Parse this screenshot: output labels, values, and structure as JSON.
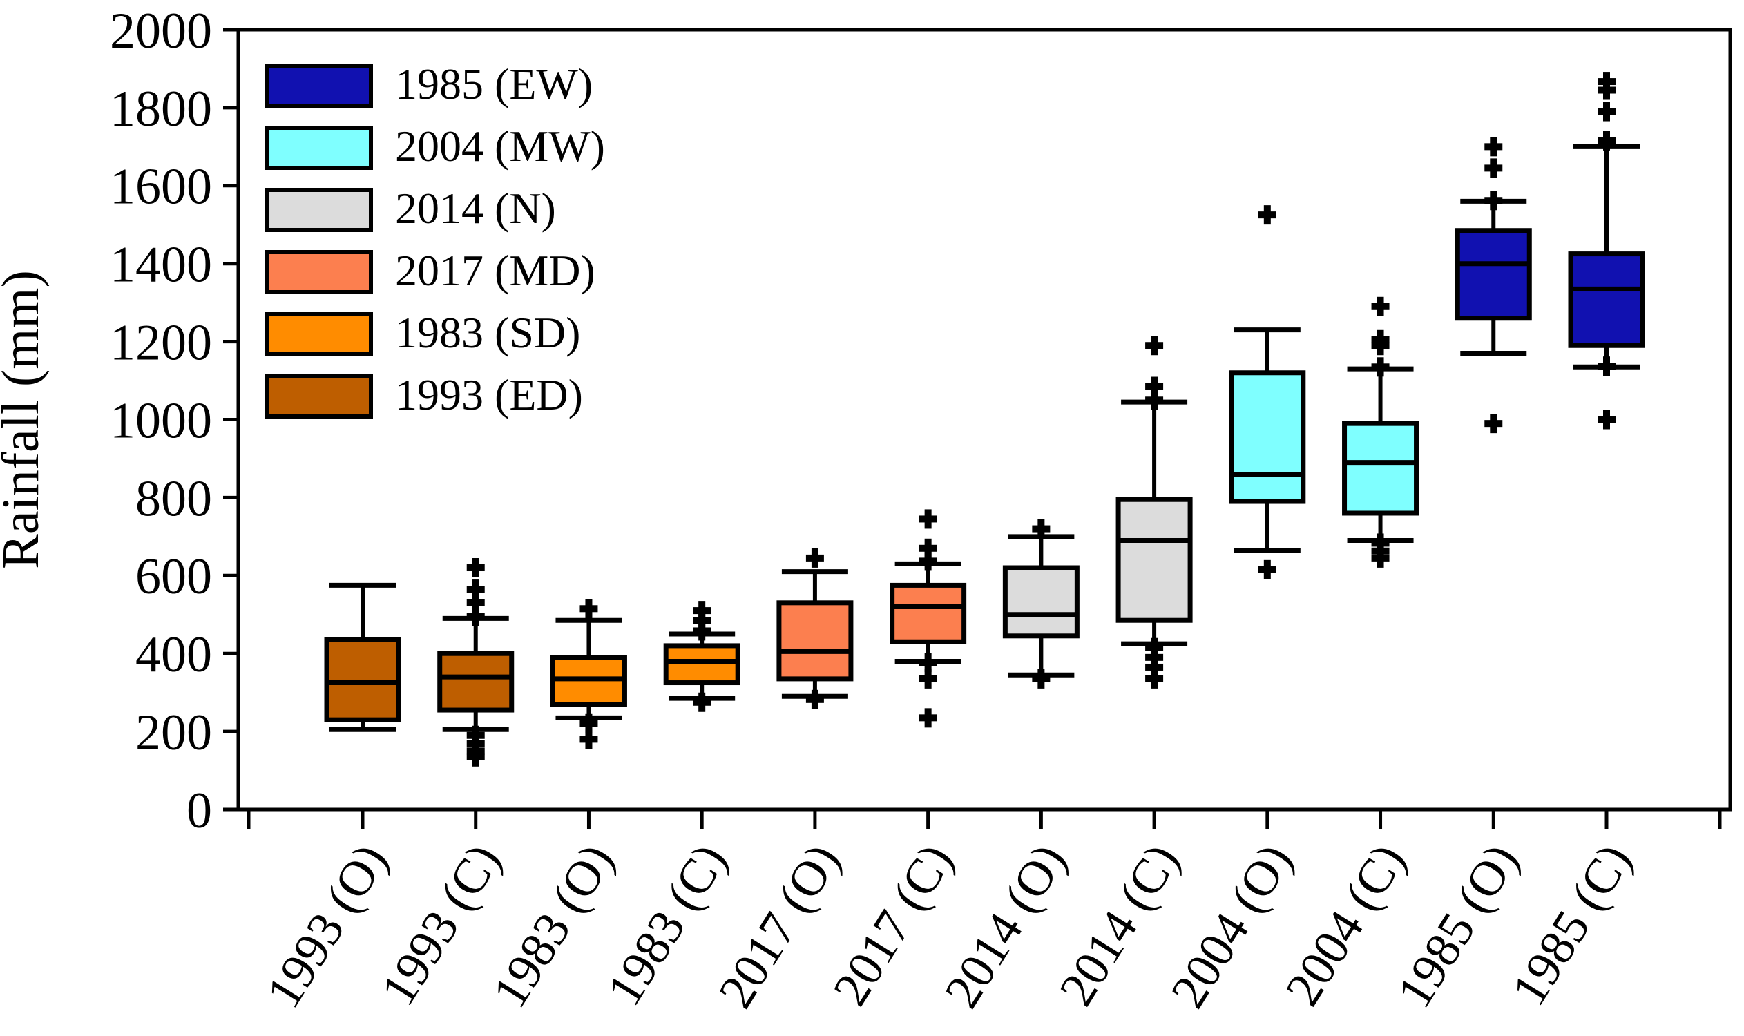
{
  "figure": {
    "background": "#FFFFFF"
  },
  "chart_data": {
    "type": "boxplot",
    "title": "",
    "xlabel": "",
    "ylabel": "Rainfall (mm)",
    "ylim": [
      0,
      2000
    ],
    "yticks": [
      0,
      200,
      400,
      600,
      800,
      1000,
      1200,
      1400,
      1600,
      1800,
      2000
    ],
    "grid": false,
    "legend_position": "upper-left-inside",
    "legend": [
      {
        "label": "1985 (EW)",
        "color": "#1111B0"
      },
      {
        "label": "2004 (MW)",
        "color": "#7FFFFF"
      },
      {
        "label": "2014 (N)",
        "color": "#DCDCDC"
      },
      {
        "label": "2017 (MD)",
        "color": "#FC7F4F"
      },
      {
        "label": "1983 (SD)",
        "color": "#FF8C00"
      },
      {
        "label": "1993 (ED)",
        "color": "#BE5E00"
      }
    ],
    "categories": [
      "1993 (O)",
      "1993 (C)",
      "1983 (O)",
      "1983 (C)",
      "2017 (O)",
      "2017 (C)",
      "2014 (O)",
      "2014 (C)",
      "2004 (O)",
      "2004 (C)",
      "1985 (O)",
      "1985 (C)"
    ],
    "boxes": [
      {
        "label": "1993 (O)",
        "group": "1993 (ED)",
        "color": "#BE5E00",
        "whisker_low": 205,
        "q1": 230,
        "median": 325,
        "q3": 435,
        "whisker_high": 575,
        "outliers_above": [],
        "outliers_below": []
      },
      {
        "label": "1993 (C)",
        "group": "1993 (ED)",
        "color": "#BE5E00",
        "whisker_low": 205,
        "q1": 255,
        "median": 340,
        "q3": 400,
        "whisker_high": 490,
        "outliers_above": [
          620,
          565,
          530,
          495
        ],
        "outliers_below": [
          190,
          170,
          150,
          135
        ]
      },
      {
        "label": "1983 (O)",
        "group": "1983 (SD)",
        "color": "#FF8C00",
        "whisker_low": 235,
        "q1": 270,
        "median": 335,
        "q3": 390,
        "whisker_high": 485,
        "outliers_above": [
          515
        ],
        "outliers_below": [
          220,
          180
        ]
      },
      {
        "label": "1983 (C)",
        "group": "1983 (SD)",
        "color": "#FF8C00",
        "whisker_low": 285,
        "q1": 325,
        "median": 380,
        "q3": 420,
        "whisker_high": 450,
        "outliers_above": [
          510,
          485,
          458
        ],
        "outliers_below": [
          275
        ]
      },
      {
        "label": "2017 (O)",
        "group": "2017 (MD)",
        "color": "#FC7F4F",
        "whisker_low": 290,
        "q1": 335,
        "median": 405,
        "q3": 530,
        "whisker_high": 610,
        "outliers_above": [
          645
        ],
        "outliers_below": [
          282
        ]
      },
      {
        "label": "2017 (C)",
        "group": "2017 (MD)",
        "color": "#FC7F4F",
        "whisker_low": 380,
        "q1": 430,
        "median": 520,
        "q3": 575,
        "whisker_high": 630,
        "outliers_above": [
          745,
          670,
          637
        ],
        "outliers_below": [
          377,
          335,
          235
        ]
      },
      {
        "label": "2014 (O)",
        "group": "2014 (N)",
        "color": "#DCDCDC",
        "whisker_low": 345,
        "q1": 445,
        "median": 500,
        "q3": 620,
        "whisker_high": 700,
        "outliers_above": [
          720
        ],
        "outliers_below": [
          335
        ]
      },
      {
        "label": "2014 (C)",
        "group": "2014 (N)",
        "color": "#DCDCDC",
        "whisker_low": 425,
        "q1": 485,
        "median": 690,
        "q3": 795,
        "whisker_high": 1045,
        "outliers_above": [
          1190,
          1085,
          1050
        ],
        "outliers_below": [
          415,
          390,
          365,
          335
        ]
      },
      {
        "label": "2004 (O)",
        "group": "2004 (MW)",
        "color": "#7FFFFF",
        "whisker_low": 665,
        "q1": 790,
        "median": 860,
        "q3": 1120,
        "whisker_high": 1230,
        "outliers_above": [
          1525
        ],
        "outliers_below": [
          615
        ]
      },
      {
        "label": "2004 (C)",
        "group": "2004 (MW)",
        "color": "#7FFFFF",
        "whisker_low": 690,
        "q1": 760,
        "median": 890,
        "q3": 990,
        "whisker_high": 1130,
        "outliers_above": [
          1290,
          1205,
          1190,
          1135
        ],
        "outliers_below": [
          683,
          663,
          645
        ]
      },
      {
        "label": "1985 (O)",
        "group": "1985 (EW)",
        "color": "#1111B0",
        "whisker_low": 1170,
        "q1": 1260,
        "median": 1400,
        "q3": 1485,
        "whisker_high": 1560,
        "outliers_above": [
          1700,
          1645,
          1562
        ],
        "outliers_below": [
          990
        ]
      },
      {
        "label": "1985 (C)",
        "group": "1985 (EW)",
        "color": "#1111B0",
        "whisker_low": 1135,
        "q1": 1190,
        "median": 1335,
        "q3": 1425,
        "whisker_high": 1700,
        "outliers_above": [
          1867,
          1845,
          1790,
          1715
        ],
        "outliers_below": [
          1137,
          1000
        ]
      }
    ]
  }
}
